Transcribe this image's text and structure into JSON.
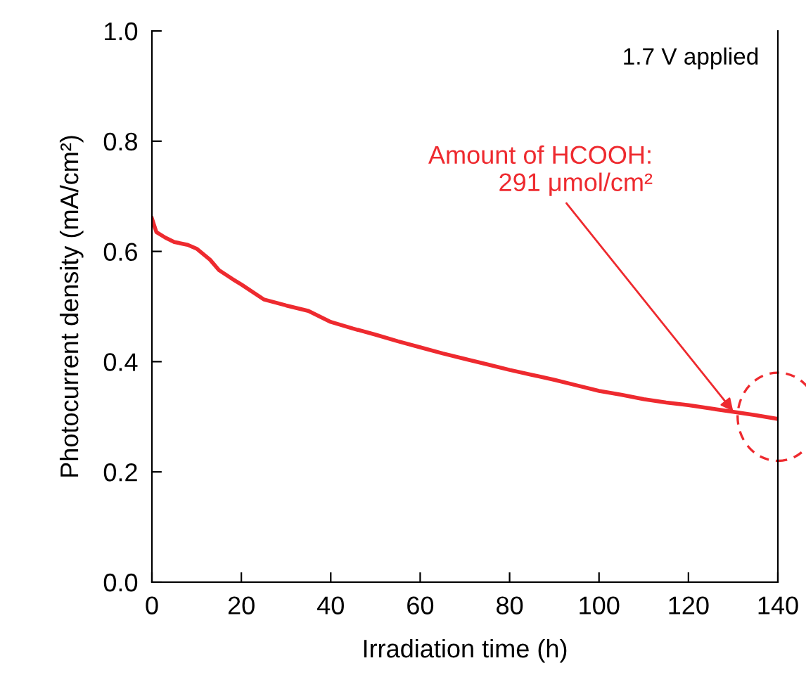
{
  "chart_data": {
    "type": "line",
    "xlabel": "Irradiation time (h)",
    "ylabel": "Photocurrent density (mA/cm²)",
    "x": [
      0,
      1,
      3,
      5,
      8,
      10,
      13,
      15,
      18,
      20,
      25,
      30,
      35,
      40,
      45,
      50,
      55,
      60,
      65,
      70,
      75,
      80,
      85,
      90,
      95,
      100,
      105,
      110,
      115,
      120,
      125,
      130,
      135,
      140
    ],
    "series": [
      {
        "color": "#ee2a2f",
        "values": [
          0.66,
          0.635,
          0.625,
          0.617,
          0.612,
          0.605,
          0.585,
          0.566,
          0.55,
          0.54,
          0.513,
          0.502,
          0.492,
          0.472,
          0.46,
          0.449,
          0.437,
          0.426,
          0.415,
          0.405,
          0.395,
          0.385,
          0.376,
          0.367,
          0.357,
          0.347,
          0.34,
          0.332,
          0.326,
          0.321,
          0.315,
          0.309,
          0.303,
          0.296
        ]
      }
    ],
    "xlim": [
      0,
      140
    ],
    "xticks": [
      0,
      20,
      40,
      60,
      80,
      100,
      120,
      140
    ],
    "ylim": [
      0.0,
      1.0
    ],
    "yticks": [
      {
        "value": 0.0,
        "label": "0.0"
      },
      {
        "value": 0.2,
        "label": "0.2"
      },
      {
        "value": 0.4,
        "label": "0.4"
      },
      {
        "value": 0.6,
        "label": "0.6"
      },
      {
        "value": 0.8,
        "label": "0.8"
      },
      {
        "value": 1.0,
        "label": "1.0"
      }
    ],
    "annotations": [
      "1.7 V applied",
      {
        "text": "Amount of HCOOH:\n291 μmol/cm²",
        "x": 130,
        "y": 0.31
      }
    ],
    "grid": false,
    "legend": false,
    "marker": "none",
    "line_style": "solid"
  }
}
